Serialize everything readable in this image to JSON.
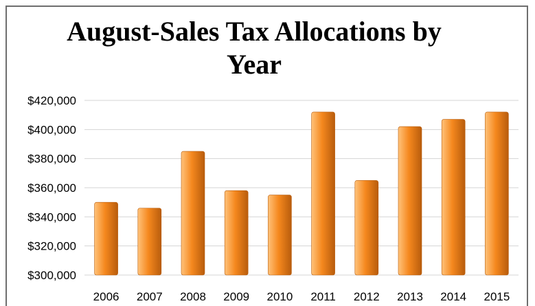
{
  "colors": {
    "bar_light": "#ffc27a",
    "bar_mid": "#f5881e",
    "bar_dark": "#b85c0c",
    "grid": "#d4d4d4",
    "border": "#6e6e6e"
  },
  "chart_data": {
    "type": "bar",
    "title": "August-Sales Tax Allocations by Year",
    "xlabel": "",
    "ylabel": "",
    "categories": [
      "2006",
      "2007",
      "2008",
      "2009",
      "2010",
      "2011",
      "2012",
      "2013",
      "2014",
      "2015"
    ],
    "values": [
      350000,
      346000,
      385000,
      358000,
      355000,
      412000,
      365000,
      402000,
      407000,
      412000
    ],
    "ylim": [
      300000,
      420000
    ],
    "yticks": [
      300000,
      320000,
      340000,
      360000,
      380000,
      400000,
      420000
    ],
    "ytick_labels": [
      "$300,000",
      "$320,000",
      "$340,000",
      "$360,000",
      "$380,000",
      "$400,000",
      "$420,000"
    ],
    "grid": true,
    "legend": "none"
  }
}
